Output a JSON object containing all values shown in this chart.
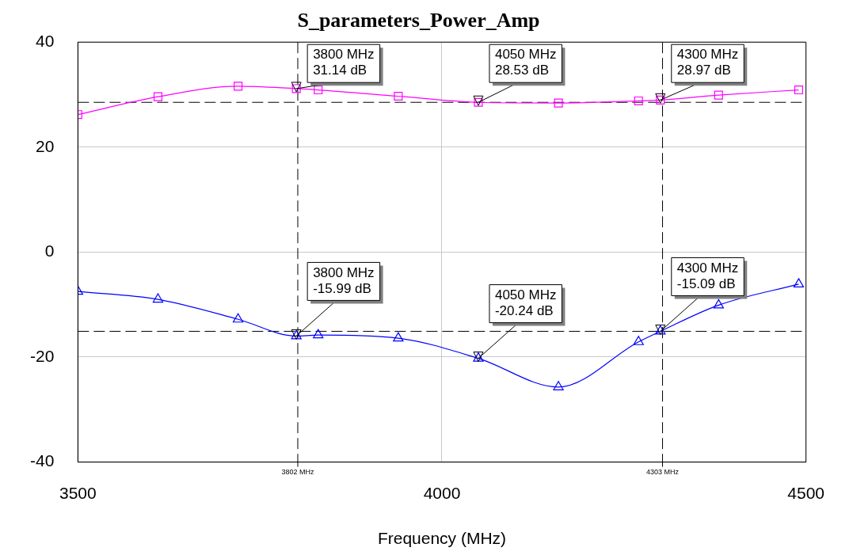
{
  "chart_data": {
    "type": "line",
    "title": "S_parameters_Power_Amp",
    "xlabel": "Frequency (MHz)",
    "xlim": [
      3500,
      4500
    ],
    "xticks": [
      3500,
      4000,
      4500
    ],
    "ylim": [
      -40,
      40
    ],
    "yticks": [
      -40,
      -20,
      0,
      20,
      40
    ],
    "grid": true,
    "series": [
      {
        "color": "#ff00ff",
        "marker": "square",
        "x": [
          3500,
          3610,
          3720,
          3800,
          3830,
          3940,
          4050,
          4160,
          4270,
          4300,
          4380,
          4490
        ],
        "values": [
          26.2,
          29.6,
          31.6,
          31.14,
          30.9,
          29.7,
          28.53,
          28.4,
          28.8,
          28.97,
          29.9,
          30.9
        ]
      },
      {
        "color": "#0000ff",
        "marker": "triangle",
        "x": [
          3500,
          3610,
          3720,
          3800,
          3830,
          3940,
          4050,
          4160,
          4270,
          4300,
          4380,
          4490
        ],
        "values": [
          -7.5,
          -9.0,
          -12.8,
          -15.99,
          -15.8,
          -16.4,
          -20.24,
          -25.7,
          -17.1,
          -15.09,
          -10.1,
          -6.1
        ]
      }
    ],
    "ref_lines": [
      {
        "axis": "x",
        "value": 3802,
        "label": "3802 MHz",
        "line_style": "dashed",
        "color": "#000000"
      },
      {
        "axis": "x",
        "value": 4303,
        "label": "4303 MHz",
        "line_style": "dashed",
        "color": "#000000"
      },
      {
        "axis": "y",
        "value": 28.53,
        "line_style": "dashed",
        "color": "#000000"
      },
      {
        "axis": "y",
        "value": -15.09,
        "line_style": "dashed",
        "color": "#000000"
      }
    ],
    "annotations": [
      {
        "text": "3800 MHz\n31.14 dB",
        "x": 3800,
        "y": 31.14
      },
      {
        "text": "4050 MHz\n28.53 dB",
        "x": 4050,
        "y": 28.53
      },
      {
        "text": "4300 MHz\n28.97 dB",
        "x": 4300,
        "y": 28.97
      },
      {
        "text": "3800 MHz\n-15.99 dB",
        "x": 3800,
        "y": -15.99
      },
      {
        "text": "4050 MHz\n-20.24 dB",
        "x": 4050,
        "y": -20.24
      },
      {
        "text": "4300 MHz\n-15.09 dB",
        "x": 4300,
        "y": -15.09
      }
    ]
  }
}
